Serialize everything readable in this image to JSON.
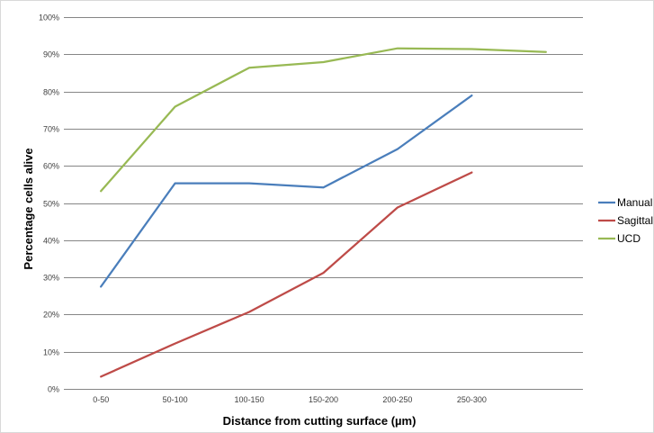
{
  "chart_data": {
    "type": "line",
    "title": "",
    "xlabel": "Distance from cutting surface (µm)",
    "ylabel": "Percentage cells alive",
    "categories": [
      "0-50",
      "50-100",
      "100-150",
      "150-200",
      "200-250",
      "250-300",
      ""
    ],
    "y_ticks": [
      "0%",
      "10%",
      "20%",
      "30%",
      "40%",
      "50%",
      "60%",
      "70%",
      "80%",
      "90%",
      "100%"
    ],
    "ylim": [
      0,
      100
    ],
    "grid": true,
    "legend_position": "right",
    "series": [
      {
        "name": "Manual",
        "color": "#4a7ebb",
        "values": [
          27.5,
          55.3,
          55.3,
          54.2,
          64.5,
          78.9,
          null
        ]
      },
      {
        "name": "Sagittal",
        "color": "#be4b48",
        "values": [
          3.3,
          12.2,
          20.7,
          31.2,
          48.8,
          58.2,
          null
        ]
      },
      {
        "name": "UCD",
        "color": "#98b954",
        "values": [
          53.2,
          75.9,
          86.4,
          87.9,
          91.6,
          91.4,
          90.6
        ]
      }
    ]
  }
}
